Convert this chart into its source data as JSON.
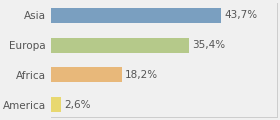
{
  "categories": [
    "America",
    "Africa",
    "Europa",
    "Asia"
  ],
  "values": [
    2.6,
    18.2,
    35.4,
    43.7
  ],
  "labels": [
    "2,6%",
    "18,2%",
    "35,4%",
    "43,7%"
  ],
  "bar_colors": [
    "#e8d870",
    "#e8b87a",
    "#b5c98a",
    "#7a9fc0"
  ],
  "background_color": "#f0f0f0",
  "xlim": [
    0,
    58
  ],
  "bar_height": 0.5,
  "label_fontsize": 7.5,
  "tick_fontsize": 7.5,
  "right_spine_color": "#cccccc",
  "bottom_spine_color": "#cccccc"
}
